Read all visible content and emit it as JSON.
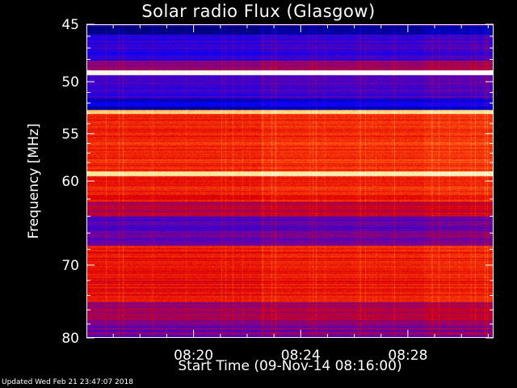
{
  "chart_data": {
    "type": "heatmap",
    "title": "Solar radio Flux (Glasgow)",
    "ylabel": "Frequency [MHz]",
    "xlabel": "Start Time (09-Nov-14 08:16:00)",
    "y_ticks": [
      45,
      50,
      55,
      60,
      70,
      80
    ],
    "ylim": [
      45,
      80
    ],
    "y_scale": "log",
    "x_tick_labels": [
      "08:20",
      "08:24",
      "08:28"
    ],
    "x_tick_minutes": [
      20,
      24,
      28
    ],
    "xlim_minutes": [
      16.0,
      31.2
    ],
    "color_scale": [
      "#000040",
      "#0000ff",
      "#7000a0",
      "#e00000",
      "#ff5010",
      "#ffe080",
      "#ffffff"
    ],
    "bands": [
      {
        "from": 45,
        "to": 45.8,
        "level": 0.05
      },
      {
        "from": 45.8,
        "to": 48.0,
        "level": 0.22
      },
      {
        "from": 48.0,
        "to": 48.9,
        "level": 0.38
      },
      {
        "from": 48.9,
        "to": 49.3,
        "level": 0.98
      },
      {
        "from": 49.3,
        "to": 51.5,
        "level": 0.25
      },
      {
        "from": 51.5,
        "to": 52.6,
        "level": 0.12
      },
      {
        "from": 52.6,
        "to": 53.0,
        "level": 0.82
      },
      {
        "from": 53.0,
        "to": 58.9,
        "level": 0.57
      },
      {
        "from": 58.9,
        "to": 59.4,
        "level": 0.86
      },
      {
        "from": 59.4,
        "to": 62.3,
        "level": 0.55
      },
      {
        "from": 62.3,
        "to": 64.0,
        "level": 0.43
      },
      {
        "from": 64.0,
        "to": 67.5,
        "level": 0.3
      },
      {
        "from": 67.5,
        "to": 75.0,
        "level": 0.53
      },
      {
        "from": 75.0,
        "to": 77.5,
        "level": 0.4
      },
      {
        "from": 77.5,
        "to": 80,
        "level": 0.33
      }
    ]
  },
  "footer": {
    "updated": "Updated Wed Feb 21 23:47:07 2018"
  }
}
